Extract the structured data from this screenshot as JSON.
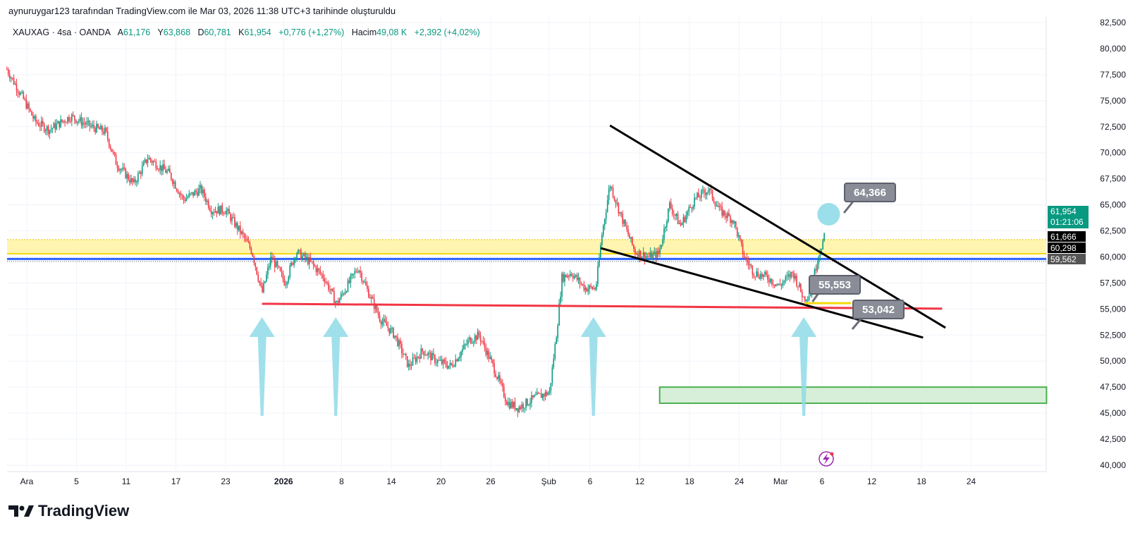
{
  "caption": "aynuruygar123 tarafından TradingView.com ile Mar 03, 2026 11:38 UTC+3 tarihinde oluşturuldu",
  "legend": {
    "symbol": "XAUXAG · 4sa · OANDA",
    "open_label": "A",
    "open": "61,176",
    "high_label": "Y",
    "high": "63,868",
    "low_label": "D",
    "low": "60,781",
    "close_label": "K",
    "close": "61,954",
    "change": "+0,776 (+1,27%)",
    "volume_label": "Hacim",
    "volume": "49,08 K",
    "volume_change": "+2,392 (+4,02%)"
  },
  "brand": "TradingView",
  "colors": {
    "up": "#089981",
    "down": "#f23645",
    "zone": "#fff5b1",
    "blue": "#2962ff",
    "red": "#f23645",
    "arrow": "#8fdbe8",
    "green": "#4caf50"
  },
  "chart_data": {
    "type": "candlestick",
    "title": "XAUXAG · 4sa · OANDA",
    "ylim": [
      40000,
      82500
    ],
    "y_ticks": [
      "82,500",
      "80,000",
      "77,500",
      "75,000",
      "72,500",
      "70,000",
      "67,500",
      "65,000",
      "62,500",
      "60,000",
      "57,500",
      "55,000",
      "52,500",
      "50,000",
      "47,500",
      "45,000",
      "42,500",
      "40,000"
    ],
    "x_ticks": [
      {
        "label": "Ara",
        "day": 0
      },
      {
        "label": "5",
        "day": 6
      },
      {
        "label": "11",
        "day": 12
      },
      {
        "label": "17",
        "day": 18
      },
      {
        "label": "23",
        "day": 24
      },
      {
        "label": "2026",
        "day": 31
      },
      {
        "label": "8",
        "day": 38
      },
      {
        "label": "14",
        "day": 44
      },
      {
        "label": "20",
        "day": 50
      },
      {
        "label": "26",
        "day": 56
      },
      {
        "label": "Şub",
        "day": 63
      },
      {
        "label": "6",
        "day": 68
      },
      {
        "label": "12",
        "day": 74
      },
      {
        "label": "18",
        "day": 80
      },
      {
        "label": "24",
        "day": 86
      },
      {
        "label": "Mar",
        "day": 91
      },
      {
        "label": "6",
        "day": 96
      },
      {
        "label": "12",
        "day": 102
      },
      {
        "label": "18",
        "day": 108
      },
      {
        "label": "24",
        "day": 114
      }
    ],
    "price_path": [
      [
        -2.4,
        78000
      ],
      [
        -0.3,
        75000
      ],
      [
        1,
        73000
      ],
      [
        2.7,
        72200
      ],
      [
        5.3,
        73500
      ],
      [
        7.8,
        72500
      ],
      [
        9.5,
        72000
      ],
      [
        10.8,
        69000
      ],
      [
        12.9,
        67000
      ],
      [
        14.6,
        69500
      ],
      [
        17.2,
        68000
      ],
      [
        18.9,
        65500
      ],
      [
        21,
        66500
      ],
      [
        22.3,
        64500
      ],
      [
        24,
        64500
      ],
      [
        26.1,
        62000
      ],
      [
        27.2,
        60500
      ],
      [
        28.4,
        56500
      ],
      [
        29.5,
        60000
      ],
      [
        31.2,
        57500
      ],
      [
        32.5,
        60500
      ],
      [
        34.2,
        59500
      ],
      [
        35.9,
        58000
      ],
      [
        37.4,
        55500
      ],
      [
        38.9,
        57500
      ],
      [
        40,
        59000
      ],
      [
        41,
        57000
      ],
      [
        42.7,
        54000
      ],
      [
        44.4,
        52500
      ],
      [
        46.1,
        49500
      ],
      [
        47.8,
        51000
      ],
      [
        49.5,
        50000
      ],
      [
        51.2,
        49500
      ],
      [
        53.4,
        52000
      ],
      [
        54.6,
        52500
      ],
      [
        56.3,
        49500
      ],
      [
        58,
        46000
      ],
      [
        59.3,
        45500
      ],
      [
        61.4,
        46500
      ],
      [
        63.1,
        47000
      ],
      [
        64,
        53000
      ],
      [
        64.6,
        58000
      ],
      [
        65.7,
        58500
      ],
      [
        67.4,
        57000
      ],
      [
        68.7,
        57000
      ],
      [
        69.4,
        62000
      ],
      [
        70.4,
        67000
      ],
      [
        71.7,
        64000
      ],
      [
        73.4,
        60500
      ],
      [
        75.1,
        60000
      ],
      [
        76.3,
        60300
      ],
      [
        77.6,
        65000
      ],
      [
        78.9,
        63000
      ],
      [
        80.6,
        65500
      ],
      [
        82.3,
        66500
      ],
      [
        83.6,
        64500
      ],
      [
        85.3,
        63500
      ],
      [
        86.6,
        60000
      ],
      [
        87.8,
        58500
      ],
      [
        89.5,
        58000
      ],
      [
        90.8,
        57200
      ],
      [
        92.5,
        58500
      ],
      [
        93.8,
        56000
      ],
      [
        94.6,
        56500
      ],
      [
        95.5,
        60000
      ],
      [
        96.3,
        61954
      ]
    ],
    "price_labels": [
      {
        "text": "61,954",
        "sub": "01:21:06",
        "price": 61954,
        "color": "#089981"
      },
      {
        "text": "61,666",
        "price": 61666,
        "color": "#000000"
      },
      {
        "text": "60,298",
        "price": 60298,
        "color": "#000000"
      },
      {
        "text": "59,562",
        "price": 59562,
        "color": "#555555"
      }
    ],
    "drawings": {
      "zone": [
        60298,
        61666
      ],
      "blue_line": 59800,
      "dotted_line": 59562,
      "red_line": [
        [
          28.4,
          55500
        ],
        [
          110.5,
          55030
        ]
      ],
      "upper_trend": [
        [
          70.4,
          72620
        ],
        [
          110.9,
          53200
        ]
      ],
      "lower_trend": [
        [
          69.3,
          60840
        ],
        [
          108.2,
          52250
        ]
      ],
      "green_box": [
        [
          76.4,
          47500
        ],
        [
          123.1,
          45950
        ]
      ],
      "yellow_short": [
        [
          93.9,
          55553
        ],
        [
          99.5,
          55553
        ]
      ],
      "arrows": [
        28.4,
        37.3,
        68.4,
        93.8
      ],
      "circle": [
        96.8,
        64366
      ],
      "callouts": [
        {
          "text": "64,366",
          "at": [
            97.8,
            64366
          ]
        },
        {
          "text": "55,553",
          "at": [
            94,
            55553
          ]
        },
        {
          "text": "53,042",
          "at": [
            98.8,
            53042
          ]
        }
      ]
    }
  }
}
